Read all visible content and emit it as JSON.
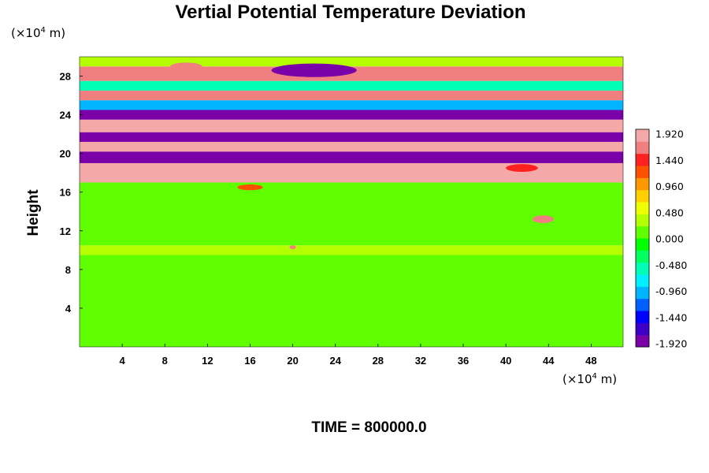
{
  "chart_data": {
    "type": "heatmap",
    "title": "Vertial Potential Temperature Deviation",
    "xlabel": "",
    "ylabel": "Height",
    "x_unit_prefix": "(×10",
    "x_unit_exp": "4",
    "x_unit_suffix": " m)",
    "y_unit_prefix": "(×10",
    "y_unit_exp": "4",
    "y_unit_suffix": " m)",
    "xlim": [
      0,
      51
    ],
    "ylim": [
      0,
      30
    ],
    "x_ticks": [
      4,
      8,
      12,
      16,
      20,
      24,
      28,
      32,
      36,
      40,
      44,
      48
    ],
    "y_ticks": [
      4,
      8,
      12,
      16,
      20,
      24,
      28
    ],
    "colorbar": {
      "min": -1.92,
      "max": 1.92,
      "tick_labels": [
        "1.920",
        "1.440",
        "0.960",
        "0.480",
        "0.000",
        "-0.480",
        "-0.960",
        "-1.440",
        "-1.920"
      ],
      "colors_low_to_high": [
        "#7a00a8",
        "#3c00c8",
        "#0000ff",
        "#0060ff",
        "#00b4ff",
        "#00f0ff",
        "#00ffb4",
        "#00ff60",
        "#00ff00",
        "#60ff00",
        "#b4ff00",
        "#f0ff00",
        "#ffd000",
        "#ff9800",
        "#ff5000",
        "#ff2020",
        "#f08080",
        "#f4a8a8"
      ]
    },
    "bands": [
      {
        "y_bottom": 0,
        "y_top": 9.5,
        "value": 0.0
      },
      {
        "y_bottom": 9.5,
        "y_top": 10.5,
        "value": 0.35
      },
      {
        "y_bottom": 10.5,
        "y_top": 17,
        "value": 0.05
      },
      {
        "y_bottom": 17,
        "y_top": 19,
        "value": 1.92
      },
      {
        "y_bottom": 19,
        "y_top": 20.2,
        "value": -1.92
      },
      {
        "y_bottom": 20.2,
        "y_top": 21.2,
        "value": 1.92
      },
      {
        "y_bottom": 21.2,
        "y_top": 22.2,
        "value": -1.92
      },
      {
        "y_bottom": 22.2,
        "y_top": 23.5,
        "value": 1.92
      },
      {
        "y_bottom": 23.5,
        "y_top": 24.5,
        "value": -1.92
      },
      {
        "y_bottom": 24.5,
        "y_top": 25.5,
        "value": -0.9
      },
      {
        "y_bottom": 25.5,
        "y_top": 26.5,
        "value": 1.5
      },
      {
        "y_bottom": 26.5,
        "y_top": 27.5,
        "value": -0.6
      },
      {
        "y_bottom": 27.5,
        "y_top": 29,
        "value": 1.7
      },
      {
        "y_bottom": 29,
        "y_top": 30,
        "value": 0.3
      }
    ],
    "anomalies": [
      {
        "x": 22,
        "y": 28.6,
        "rx": 4,
        "ry": 0.7,
        "value": -1.92
      },
      {
        "x": 10,
        "y": 29,
        "rx": 1.5,
        "ry": 0.4,
        "value": 1.6
      },
      {
        "x": 16,
        "y": 16.5,
        "rx": 1.2,
        "ry": 0.3,
        "value": 1.2
      },
      {
        "x": 43.5,
        "y": 13.2,
        "rx": 1,
        "ry": 0.4,
        "value": 1.7
      },
      {
        "x": 41.5,
        "y": 18.5,
        "rx": 1.5,
        "ry": 0.4,
        "value": 1.3
      },
      {
        "x": 20,
        "y": 10.3,
        "rx": 0.3,
        "ry": 0.2,
        "value": 1.6
      }
    ],
    "time_label": "TIME = 800000.0"
  }
}
